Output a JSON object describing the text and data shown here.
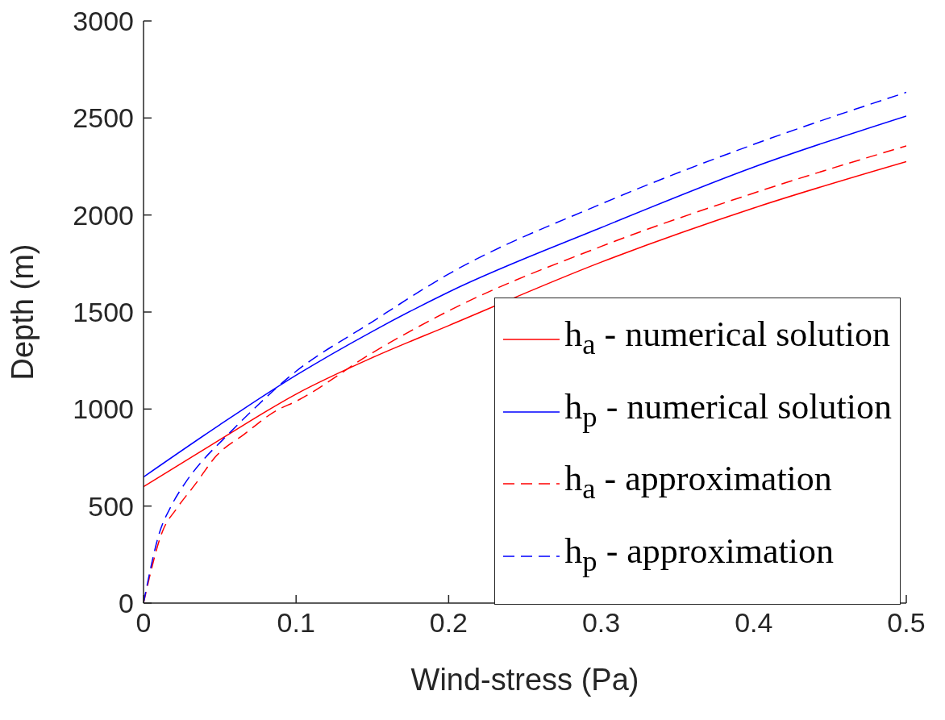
{
  "chart_data": {
    "type": "line",
    "xlabel": "Wind-stress (Pa)",
    "ylabel": "Depth (m)",
    "xlim": [
      0,
      0.5
    ],
    "xticks": [
      0,
      0.1,
      0.2,
      0.3,
      0.4,
      0.5
    ],
    "ylim": [
      0,
      3000
    ],
    "yticks": [
      0,
      500,
      1000,
      1500,
      2000,
      2500,
      3000
    ],
    "legend": "bottom right",
    "marker": "none",
    "series": [
      {
        "name": "h$_{a}$ - numerical solution",
        "color": "#ff0000",
        "line_style": "solid",
        "x": [
          0,
          0.05,
          0.1,
          0.15,
          0.2,
          0.3,
          0.4,
          0.5
        ],
        "values": [
          600,
          842,
          1077,
          1265,
          1430,
          1757,
          2036,
          2275
        ]
      },
      {
        "name": "h$_{p}$ - numerical solution",
        "color": "#0000ff",
        "line_style": "solid",
        "x": [
          0,
          0.05,
          0.1,
          0.15,
          0.2,
          0.3,
          0.4,
          0.5
        ],
        "values": [
          650,
          919,
          1174,
          1400,
          1603,
          1935,
          2247,
          2510
        ]
      },
      {
        "name": "h$_{a}$ - approximation",
        "color": "#ff0000",
        "line_style": "dashed",
        "x": [
          0,
          0.0124,
          0.022,
          0.0334,
          0.048,
          0.066,
          0.087,
          0.1,
          0.15,
          0.2,
          0.3,
          0.4,
          0.5
        ],
        "values": [
          0,
          369,
          490,
          607,
          761,
          870,
          992,
          1040,
          1290,
          1506,
          1838,
          2113,
          2356
        ]
      },
      {
        "name": "h$_{p}$ - approximation",
        "color": "#0000ff",
        "line_style": "dashed",
        "x": [
          0,
          0.0107,
          0.018,
          0.028,
          0.0386,
          0.052,
          0.0745,
          0.0955,
          0.15,
          0.2,
          0.3,
          0.4,
          0.5
        ],
        "values": [
          0,
          369,
          498,
          627,
          733,
          842,
          1017,
          1166,
          1450,
          1696,
          2057,
          2364,
          2632
        ]
      }
    ]
  }
}
